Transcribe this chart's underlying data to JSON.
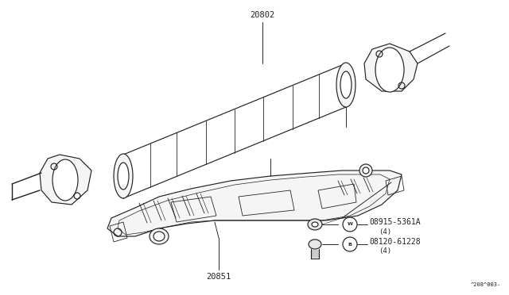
{
  "background_color": "#ffffff",
  "line_color": "#222222",
  "lw": 0.85,
  "figsize": [
    6.4,
    3.72
  ],
  "dpi": 100,
  "labels": {
    "20802": "20802",
    "20851": "20851",
    "W_part": "08915-5361A",
    "W_qty": "(4)",
    "B_part": "08120-61228",
    "B_qty": "(4)",
    "ref_code": "^208^003-"
  }
}
